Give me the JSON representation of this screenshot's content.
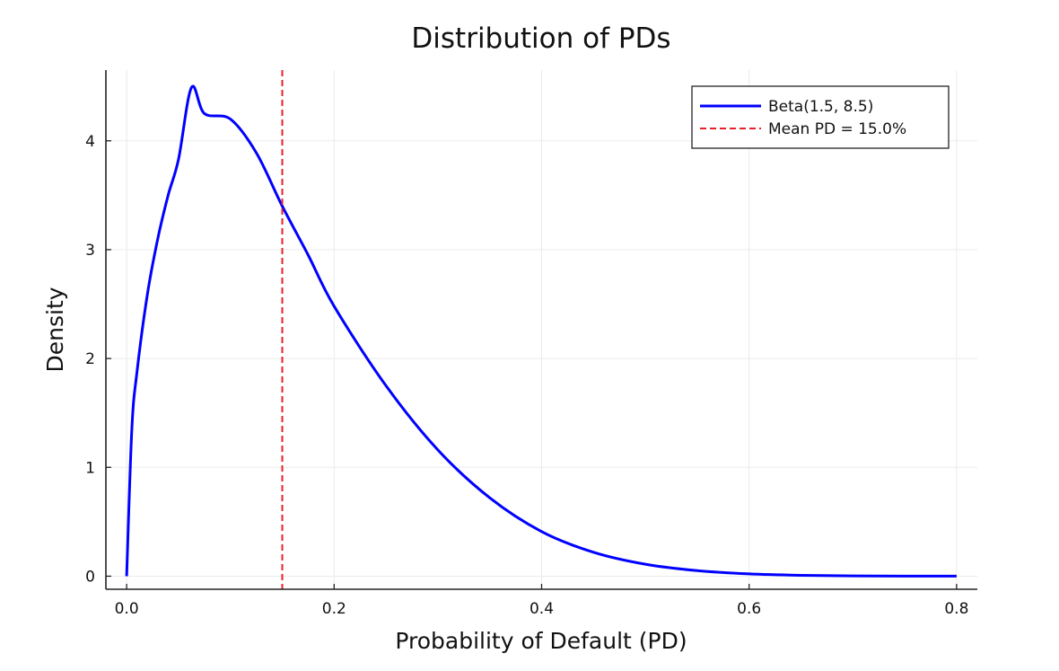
{
  "chart_data": {
    "type": "line",
    "title": "Distribution of PDs",
    "xlabel": "Probability of Default (PD)",
    "ylabel": "Density",
    "xlim": [
      -0.02,
      0.82
    ],
    "ylim": [
      -0.12,
      4.65
    ],
    "xticks": [
      0.0,
      0.2,
      0.4,
      0.6,
      0.8
    ],
    "xtick_labels": [
      "0.0",
      "0.2",
      "0.4",
      "0.6",
      "0.8"
    ],
    "yticks": [
      0,
      1,
      2,
      3,
      4
    ],
    "ytick_labels": [
      "0",
      "1",
      "2",
      "3",
      "4"
    ],
    "grid": true,
    "legend_position": "top-right",
    "series": [
      {
        "name": "Beta(1.5, 8.5)",
        "kind": "curve",
        "style": "solid",
        "color": "#0000ff",
        "x": [
          0.0,
          0.005,
          0.01,
          0.02,
          0.03,
          0.04,
          0.05,
          0.0625,
          0.075,
          0.1,
          0.125,
          0.15,
          0.175,
          0.2,
          0.25,
          0.3,
          0.35,
          0.4,
          0.45,
          0.5,
          0.55,
          0.6,
          0.65,
          0.7,
          0.75,
          0.8
        ],
        "y": [
          0.0,
          1.35,
          1.88,
          2.59,
          3.1,
          3.5,
          3.83,
          4.49,
          4.25,
          4.2,
          3.89,
          3.4,
          2.95,
          2.48,
          1.75,
          1.16,
          0.72,
          0.41,
          0.22,
          0.11,
          0.051,
          0.021,
          0.008,
          0.003,
          0.0008,
          0.0002
        ]
      },
      {
        "name": "Mean PD = 15.0%",
        "kind": "vline",
        "style": "dashed",
        "color": "#e8202a",
        "x": 0.15
      }
    ]
  }
}
